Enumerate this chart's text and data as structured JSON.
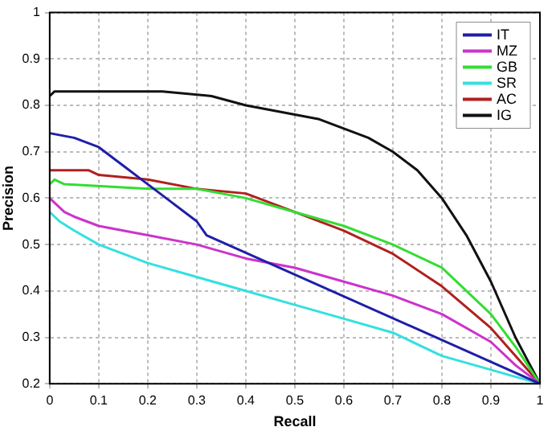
{
  "chart_data": {
    "type": "line",
    "xlabel": "Recall",
    "ylabel": "Precision",
    "xlim": [
      0,
      1
    ],
    "ylim": [
      0.2,
      1
    ],
    "xticks": [
      0,
      0.1,
      0.2,
      0.3,
      0.4,
      0.5,
      0.6,
      0.7,
      0.8,
      0.9,
      1
    ],
    "yticks": [
      0.2,
      0.3,
      0.4,
      0.5,
      0.6,
      0.7,
      0.8,
      0.9,
      1
    ],
    "grid": true,
    "legend": "top right",
    "marker": "none",
    "line_style": "solid",
    "series": [
      {
        "name": "IT",
        "color": "#1f1fa8",
        "x": [
          0,
          0.05,
          0.1,
          0.15,
          0.2,
          0.25,
          0.3,
          0.32,
          1
        ],
        "values": [
          0.74,
          0.73,
          0.71,
          0.67,
          0.63,
          0.59,
          0.55,
          0.52,
          0.2
        ]
      },
      {
        "name": "MZ",
        "color": "#cc33cc",
        "x": [
          0,
          0.03,
          0.05,
          0.1,
          0.2,
          0.3,
          0.4,
          0.5,
          0.6,
          0.7,
          0.8,
          0.9,
          0.95,
          1
        ],
        "values": [
          0.6,
          0.57,
          0.56,
          0.54,
          0.52,
          0.5,
          0.47,
          0.45,
          0.42,
          0.39,
          0.35,
          0.29,
          0.24,
          0.2
        ]
      },
      {
        "name": "GB",
        "color": "#33dd33",
        "x": [
          0,
          0.01,
          0.03,
          0.2,
          0.3,
          0.4,
          0.5,
          0.6,
          0.7,
          0.8,
          0.9,
          0.95,
          1
        ],
        "values": [
          0.63,
          0.64,
          0.63,
          0.62,
          0.62,
          0.6,
          0.57,
          0.54,
          0.5,
          0.45,
          0.35,
          0.28,
          0.2
        ]
      },
      {
        "name": "SR",
        "color": "#33e0e0",
        "x": [
          0,
          0.02,
          0.05,
          0.1,
          0.2,
          0.3,
          0.4,
          0.5,
          0.6,
          0.7,
          0.8,
          0.9,
          1
        ],
        "values": [
          0.57,
          0.55,
          0.53,
          0.5,
          0.46,
          0.43,
          0.4,
          0.37,
          0.34,
          0.31,
          0.26,
          0.23,
          0.2
        ]
      },
      {
        "name": "AC",
        "color": "#b02020",
        "x": [
          0,
          0.08,
          0.1,
          0.2,
          0.3,
          0.4,
          0.5,
          0.6,
          0.7,
          0.8,
          0.9,
          0.95,
          1
        ],
        "values": [
          0.66,
          0.66,
          0.65,
          0.64,
          0.62,
          0.61,
          0.57,
          0.53,
          0.48,
          0.41,
          0.32,
          0.26,
          0.2
        ]
      },
      {
        "name": "IG",
        "color": "#111111",
        "x": [
          0,
          0.01,
          0.23,
          0.33,
          0.4,
          0.45,
          0.5,
          0.55,
          0.6,
          0.65,
          0.7,
          0.75,
          0.8,
          0.85,
          0.9,
          0.95,
          0.98,
          1
        ],
        "values": [
          0.82,
          0.83,
          0.83,
          0.82,
          0.8,
          0.79,
          0.78,
          0.77,
          0.75,
          0.73,
          0.7,
          0.66,
          0.6,
          0.52,
          0.42,
          0.3,
          0.24,
          0.2
        ]
      }
    ]
  }
}
